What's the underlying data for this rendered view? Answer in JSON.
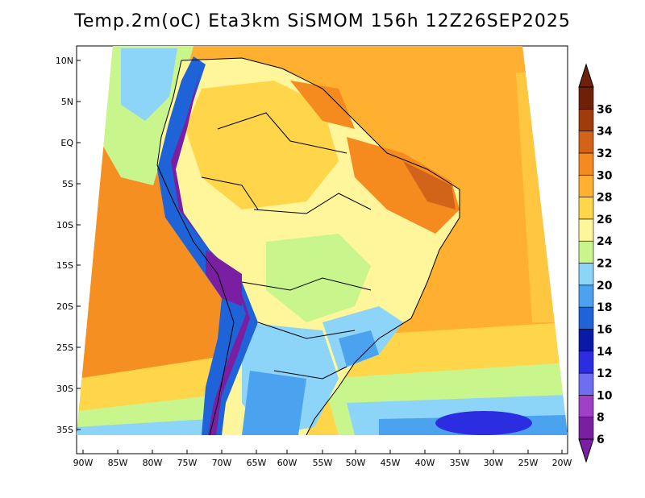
{
  "title": "Temp.2m(oC) Eta3km SiSMOM 156h 12Z26SEP2025",
  "lon_labels": [
    "90W",
    "85W",
    "80W",
    "75W",
    "70W",
    "65W",
    "60W",
    "55W",
    "50W",
    "45W",
    "40W",
    "35W",
    "30W",
    "25W",
    "20W"
  ],
  "lat_labels": [
    "10N",
    "5N",
    "EQ",
    "5S",
    "10S",
    "15S",
    "20S",
    "25S",
    "30S",
    "35S"
  ],
  "colorbar": {
    "labels": [
      "6",
      "8",
      "10",
      "12",
      "14",
      "16",
      "18",
      "20",
      "22",
      "24",
      "26",
      "28",
      "30",
      "32",
      "34",
      "36"
    ],
    "colors": [
      "#7a1fa2",
      "#a040c8",
      "#6e6ef0",
      "#2c2ce0",
      "#0a1aa8",
      "#1e64d8",
      "#4ba3f0",
      "#8cd4f8",
      "#c8f58c",
      "#fff59a",
      "#ffd54a",
      "#ffb030",
      "#f58a1e",
      "#d2641a",
      "#a03c0c",
      "#6e2008"
    ]
  },
  "map": {
    "region": "South America",
    "variable": "2m temperature",
    "units": "oC",
    "extent": {
      "lon_min": -90,
      "lon_max": -20,
      "lat_min": -37,
      "lat_max": 12
    }
  }
}
